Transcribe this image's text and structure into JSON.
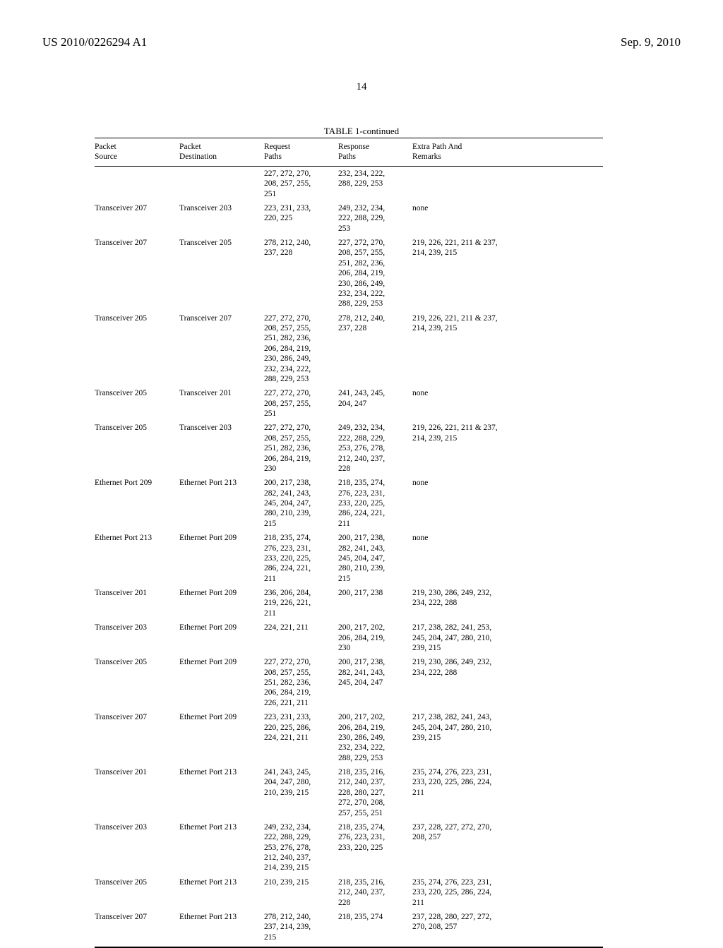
{
  "header": {
    "publication_number": "US 2010/0226294 A1",
    "date": "Sep. 9, 2010",
    "page_number": "14"
  },
  "table": {
    "title": "TABLE 1-continued",
    "columns": {
      "source": "Packet\nSource",
      "destination": "Packet\nDestination",
      "request": "Request\nPaths",
      "response": "Response\nPaths",
      "remarks": "Extra Path And\nRemarks"
    },
    "rows": [
      {
        "source": "",
        "destination": "",
        "request": "227, 272, 270, 208, 257, 255, 251",
        "response": "232, 234, 222, 288, 229, 253",
        "remarks": ""
      },
      {
        "source": "Transceiver 207",
        "destination": "Transceiver 203",
        "request": "223, 231, 233, 220, 225",
        "response": "249, 232, 234, 222, 288, 229, 253",
        "remarks": "none"
      },
      {
        "source": "Transceiver 207",
        "destination": "Transceiver 205",
        "request": "278, 212, 240, 237, 228",
        "response": "227, 272, 270, 208, 257, 255, 251, 282, 236, 206, 284, 219, 230, 286, 249, 232, 234, 222, 288, 229, 253",
        "remarks": "219, 226, 221, 211 & 237, 214, 239, 215"
      },
      {
        "source": "Transceiver 205",
        "destination": "Transceiver 207",
        "request": "227, 272, 270, 208, 257, 255, 251, 282, 236, 206, 284, 219, 230, 286, 249, 232, 234, 222, 288, 229, 253",
        "response": "278, 212, 240, 237, 228",
        "remarks": "219, 226, 221, 211 & 237, 214, 239, 215"
      },
      {
        "source": "Transceiver 205",
        "destination": "Transceiver 201",
        "request": "227, 272, 270, 208, 257, 255, 251",
        "response": "241, 243, 245, 204, 247",
        "remarks": "none"
      },
      {
        "source": "Transceiver 205",
        "destination": "Transceiver 203",
        "request": "227, 272, 270, 208, 257, 255, 251, 282, 236, 206, 284, 219, 230",
        "response": "249, 232, 234, 222, 288, 229, 253, 276, 278, 212, 240, 237, 228",
        "remarks": "219, 226, 221, 211 & 237, 214, 239, 215"
      },
      {
        "source": "Ethernet Port 209",
        "destination": "Ethernet Port 213",
        "request": "200, 217, 238, 282, 241, 243, 245, 204, 247, 280, 210, 239, 215",
        "response": "218, 235, 274, 276, 223, 231, 233, 220, 225, 286, 224, 221, 211",
        "remarks": "none"
      },
      {
        "source": "Ethernet Port 213",
        "destination": "Ethernet Port 209",
        "request": "218, 235, 274, 276, 223, 231, 233, 220, 225, 286, 224, 221, 211",
        "response": "200, 217, 238, 282, 241, 243, 245, 204, 247, 280, 210, 239, 215",
        "remarks": "none"
      },
      {
        "source": "Transceiver 201",
        "destination": "Ethernet Port 209",
        "request": "236, 206, 284, 219, 226, 221, 211",
        "response": "200, 217, 238",
        "remarks": "219, 230, 286, 249, 232, 234, 222, 288"
      },
      {
        "source": "Transceiver 203",
        "destination": "Ethernet Port 209",
        "request": "224, 221, 211",
        "response": "200, 217, 202, 206, 284, 219, 230",
        "remarks": "217, 238, 282, 241, 253, 245, 204, 247, 280, 210, 239, 215"
      },
      {
        "source": "Transceiver 205",
        "destination": "Ethernet Port 209",
        "request": "227, 272, 270, 208, 257, 255, 251, 282, 236, 206, 284, 219, 226, 221, 211",
        "response": "200, 217, 238, 282, 241, 243, 245, 204, 247",
        "remarks": "219, 230, 286, 249, 232, 234, 222, 288"
      },
      {
        "source": "Transceiver 207",
        "destination": "Ethernet Port 209",
        "request": "223, 231, 233, 220, 225, 286, 224, 221, 211",
        "response": "200, 217, 202, 206, 284, 219, 230, 286, 249, 232, 234, 222, 288, 229, 253",
        "remarks": "217, 238, 282, 241, 243, 245, 204, 247, 280, 210, 239, 215"
      },
      {
        "source": "Transceiver 201",
        "destination": "Ethernet Port 213",
        "request": "241, 243, 245, 204, 247, 280, 210, 239, 215",
        "response": "218, 235, 216, 212, 240, 237, 228, 280, 227, 272, 270, 208, 257, 255, 251",
        "remarks": "235, 274, 276, 223, 231, 233, 220, 225, 286, 224, 211"
      },
      {
        "source": "Transceiver 203",
        "destination": "Ethernet Port 213",
        "request": "249, 232, 234, 222, 288, 229, 253, 276, 278, 212, 240, 237, 214, 239, 215",
        "response": "218, 235, 274, 276, 223, 231, 233, 220, 225",
        "remarks": "237, 228, 227, 272, 270, 208, 257"
      },
      {
        "source": "Transceiver 205",
        "destination": "Ethernet Port 213",
        "request": "210, 239, 215",
        "response": "218, 235, 216, 212, 240, 237, 228",
        "remarks": "235, 274, 276, 223, 231, 233, 220, 225, 286, 224, 211"
      },
      {
        "source": "Transceiver 207",
        "destination": "Ethernet Port 213",
        "request": "278, 212, 240, 237, 214, 239, 215",
        "response": "218, 235, 274",
        "remarks": "237, 228, 280, 227, 272, 270, 208, 257"
      }
    ]
  }
}
